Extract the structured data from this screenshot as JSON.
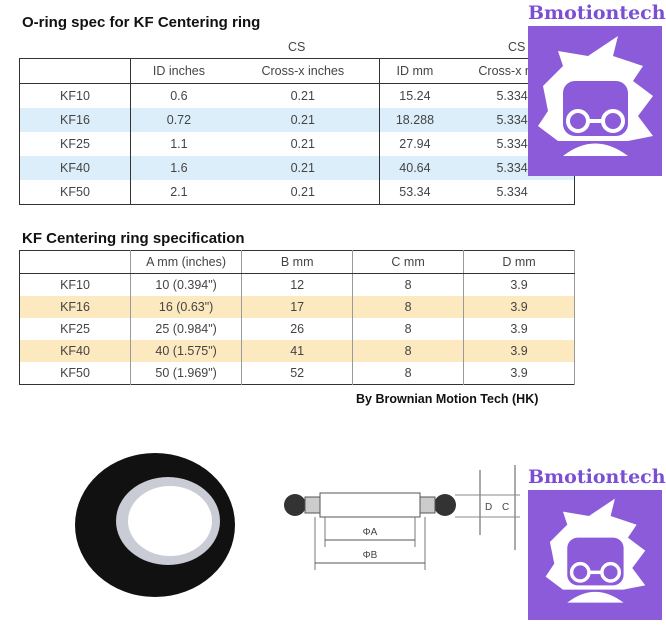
{
  "oring_table": {
    "title": "O-ring spec for KF Centering ring",
    "cs_labels": [
      "CS",
      "CS"
    ],
    "headers": [
      "",
      "ID inches",
      "Cross-x inches",
      "ID mm",
      "Cross-x mm"
    ],
    "rows": [
      [
        "KF10",
        "0.6",
        "0.21",
        "15.24",
        "5.334"
      ],
      [
        "KF16",
        "0.72",
        "0.21",
        "18.288",
        "5.334"
      ],
      [
        "KF25",
        "1.1",
        "0.21",
        "27.94",
        "5.334"
      ],
      [
        "KF40",
        "1.6",
        "0.21",
        "40.64",
        "5.334"
      ],
      [
        "KF50",
        "2.1",
        "0.21",
        "53.34",
        "5.334"
      ]
    ],
    "stripe_color": "#ddeefb"
  },
  "ring_table": {
    "title": "KF Centering ring specification",
    "headers": [
      "",
      "A mm (inches)",
      "B mm",
      "C mm",
      "D mm"
    ],
    "rows": [
      [
        "KF10",
        "10 (0.394\")",
        "12",
        "8",
        "3.9"
      ],
      [
        "KF16",
        "16 (0.63\")",
        "17",
        "8",
        "3.9"
      ],
      [
        "KF25",
        "25 (0.984\")",
        "26",
        "8",
        "3.9"
      ],
      [
        "KF40",
        "40 (1.575\")",
        "41",
        "8",
        "3.9"
      ],
      [
        "KF50",
        "50 (1.969\")",
        "52",
        "8",
        "3.9"
      ]
    ],
    "stripe_color": "#fde9bf"
  },
  "credit": "By Brownian Motion Tech (HK)",
  "logo": {
    "name": "Bmotiontech",
    "color": "#8b5bd9"
  },
  "diagram": {
    "labels": {
      "a": "ΦA",
      "b": "ΦB",
      "c": "C",
      "d": "D"
    }
  }
}
